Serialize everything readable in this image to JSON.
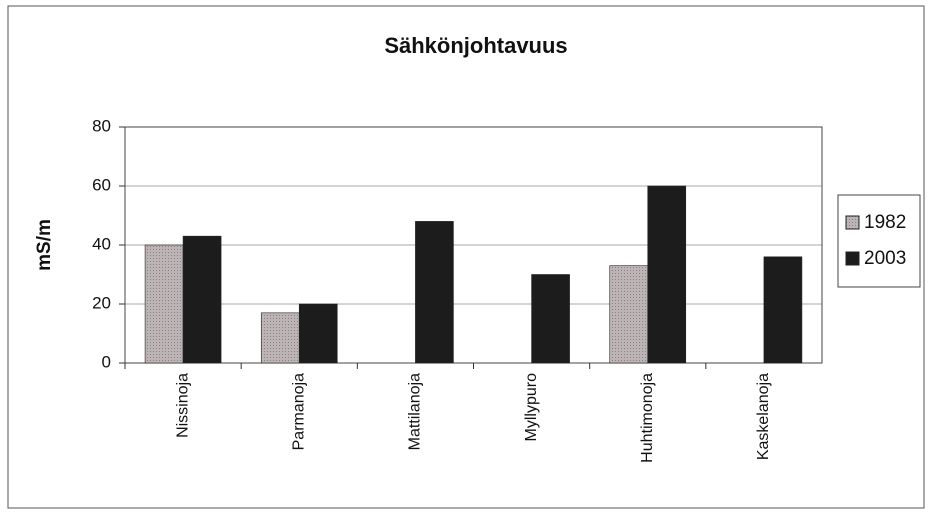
{
  "chart_data": {
    "type": "bar",
    "title": "Sähkönjohtavuus",
    "y_label": "mS/m",
    "categories": [
      "Nissinoja",
      "Parmanoja",
      "Mattilanoja",
      "Myllypuro",
      "Huhtimonoja",
      "Kaskelanoja"
    ],
    "series": [
      {
        "name": "1982",
        "color": "#b3abab",
        "values": [
          40,
          17,
          null,
          null,
          33,
          null
        ]
      },
      {
        "name": "2003",
        "color": "#1c1c1c",
        "values": [
          43,
          20,
          48,
          30,
          60,
          36
        ]
      }
    ],
    "ylim": [
      0,
      80
    ],
    "yticks": [
      0,
      20,
      40,
      60,
      80
    ],
    "grid": true,
    "legend": "right"
  }
}
